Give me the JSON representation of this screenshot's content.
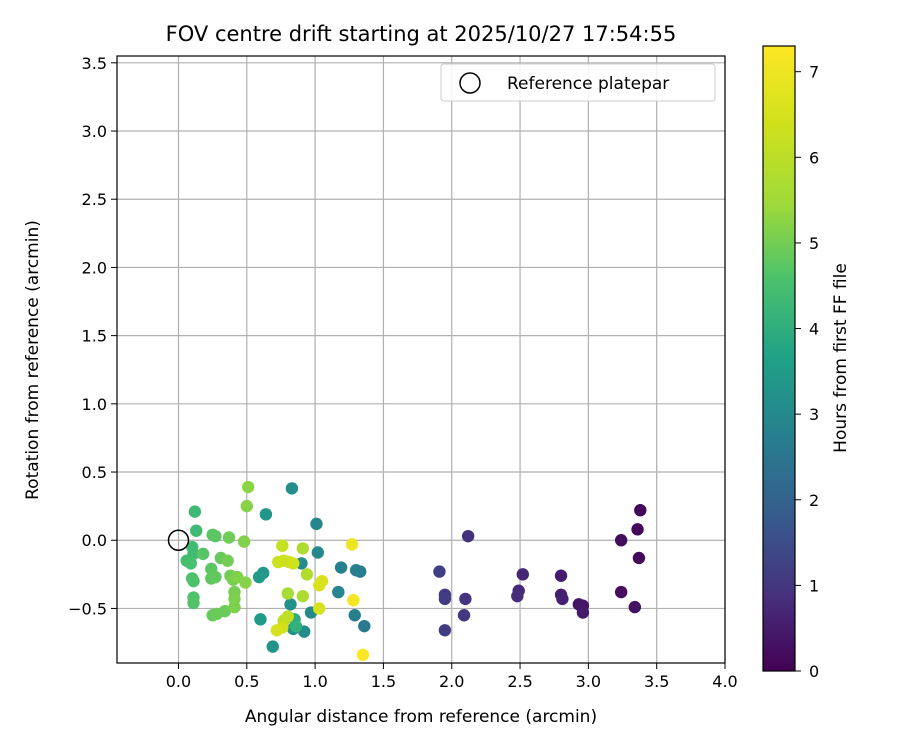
{
  "chart_data": {
    "type": "scatter",
    "title": "FOV centre drift starting at 2025/10/27 17:54:55",
    "xlabel": "Angular distance from reference (arcmin)",
    "ylabel": "Rotation from reference (arcmin)",
    "xlim": [
      -0.45,
      4.0
    ],
    "ylim": [
      -0.9,
      3.55
    ],
    "xticks": [
      0.0,
      0.5,
      1.0,
      1.5,
      2.0,
      2.5,
      3.0,
      3.5,
      4.0
    ],
    "xtick_labels": [
      "0.0",
      "0.5",
      "1.0",
      "1.5",
      "2.0",
      "2.5",
      "3.0",
      "3.5",
      "4.0"
    ],
    "yticks": [
      -0.5,
      0.0,
      0.5,
      1.0,
      1.5,
      2.0,
      2.5,
      3.0,
      3.5
    ],
    "ytick_labels": [
      "−0.5",
      "0.0",
      "0.5",
      "1.0",
      "1.5",
      "2.0",
      "2.5",
      "3.0",
      "3.5"
    ],
    "grid": true,
    "legend": {
      "placement": "top-right",
      "entries": [
        "Reference platepar"
      ]
    },
    "reference_point": {
      "x": 0.0,
      "y": 0.0,
      "name": "Reference platepar"
    },
    "colorbar": {
      "label": "Hours from first FF file",
      "range": [
        0,
        7.3
      ],
      "ticks": [
        0,
        1,
        2,
        3,
        4,
        5,
        6,
        7
      ],
      "tick_labels": [
        "0",
        "1",
        "2",
        "3",
        "4",
        "5",
        "6",
        "7"
      ],
      "colormap": "viridis"
    },
    "points": [
      {
        "x": 3.38,
        "y": 0.22,
        "c": 0.1
      },
      {
        "x": 3.36,
        "y": 0.08,
        "c": 0.12
      },
      {
        "x": 3.37,
        "y": -0.13,
        "c": 0.15
      },
      {
        "x": 3.24,
        "y": 0.0,
        "c": 0.2
      },
      {
        "x": 3.24,
        "y": -0.38,
        "c": 0.25
      },
      {
        "x": 3.34,
        "y": -0.49,
        "c": 0.3
      },
      {
        "x": 2.93,
        "y": -0.47,
        "c": 0.35
      },
      {
        "x": 2.96,
        "y": -0.48,
        "c": 0.4
      },
      {
        "x": 2.96,
        "y": -0.53,
        "c": 0.45
      },
      {
        "x": 2.8,
        "y": -0.26,
        "c": 0.5
      },
      {
        "x": 2.8,
        "y": -0.4,
        "c": 0.55
      },
      {
        "x": 2.81,
        "y": -0.43,
        "c": 0.6
      },
      {
        "x": 2.52,
        "y": -0.25,
        "c": 0.7
      },
      {
        "x": 2.49,
        "y": -0.37,
        "c": 0.75
      },
      {
        "x": 2.48,
        "y": -0.41,
        "c": 0.8
      },
      {
        "x": 2.12,
        "y": 0.03,
        "c": 0.9
      },
      {
        "x": 2.1,
        "y": -0.43,
        "c": 0.95
      },
      {
        "x": 2.09,
        "y": -0.55,
        "c": 1.0
      },
      {
        "x": 1.95,
        "y": -0.4,
        "c": 1.05
      },
      {
        "x": 1.95,
        "y": -0.43,
        "c": 1.1
      },
      {
        "x": 1.95,
        "y": -0.66,
        "c": 1.15
      },
      {
        "x": 1.91,
        "y": -0.23,
        "c": 1.2
      },
      {
        "x": 1.36,
        "y": -0.63,
        "c": 2.6
      },
      {
        "x": 1.3,
        "y": -0.22,
        "c": 2.7
      },
      {
        "x": 1.33,
        "y": -0.23,
        "c": 2.7
      },
      {
        "x": 1.29,
        "y": -0.55,
        "c": 2.75
      },
      {
        "x": 1.19,
        "y": -0.2,
        "c": 2.8
      },
      {
        "x": 1.17,
        "y": -0.38,
        "c": 2.9
      },
      {
        "x": 1.01,
        "y": 0.12,
        "c": 2.95
      },
      {
        "x": 1.02,
        "y": -0.09,
        "c": 3.0
      },
      {
        "x": 0.97,
        "y": -0.53,
        "c": 3.0
      },
      {
        "x": 0.92,
        "y": -0.67,
        "c": 3.05
      },
      {
        "x": 0.83,
        "y": 0.38,
        "c": 3.1
      },
      {
        "x": 0.9,
        "y": -0.17,
        "c": 3.1
      },
      {
        "x": 0.82,
        "y": -0.47,
        "c": 3.2
      },
      {
        "x": 0.84,
        "y": -0.65,
        "c": 3.25
      },
      {
        "x": 0.69,
        "y": -0.78,
        "c": 3.3
      },
      {
        "x": 0.64,
        "y": 0.19,
        "c": 3.35
      },
      {
        "x": 0.62,
        "y": -0.24,
        "c": 3.4
      },
      {
        "x": 0.59,
        "y": -0.27,
        "c": 3.45
      },
      {
        "x": 0.6,
        "y": -0.58,
        "c": 3.5
      },
      {
        "x": 0.85,
        "y": -0.58,
        "c": 4.0
      },
      {
        "x": 0.86,
        "y": -0.63,
        "c": 4.1
      },
      {
        "x": 0.12,
        "y": 0.21,
        "c": 4.3
      },
      {
        "x": 0.13,
        "y": 0.07,
        "c": 4.35
      },
      {
        "x": 0.1,
        "y": -0.05,
        "c": 4.4
      },
      {
        "x": 0.11,
        "y": -0.1,
        "c": 4.4
      },
      {
        "x": 0.06,
        "y": -0.15,
        "c": 4.45
      },
      {
        "x": 0.09,
        "y": -0.17,
        "c": 4.5
      },
      {
        "x": 0.1,
        "y": -0.28,
        "c": 4.55
      },
      {
        "x": 0.11,
        "y": -0.3,
        "c": 4.6
      },
      {
        "x": 0.11,
        "y": -0.42,
        "c": 4.6
      },
      {
        "x": 0.11,
        "y": -0.46,
        "c": 4.65
      },
      {
        "x": 0.18,
        "y": -0.1,
        "c": 4.7
      },
      {
        "x": 0.25,
        "y": 0.04,
        "c": 4.7
      },
      {
        "x": 0.27,
        "y": 0.03,
        "c": 4.75
      },
      {
        "x": 0.24,
        "y": -0.21,
        "c": 4.75
      },
      {
        "x": 0.24,
        "y": -0.28,
        "c": 4.8
      },
      {
        "x": 0.27,
        "y": -0.27,
        "c": 4.8
      },
      {
        "x": 0.31,
        "y": -0.13,
        "c": 4.85
      },
      {
        "x": 0.25,
        "y": -0.55,
        "c": 4.85
      },
      {
        "x": 0.28,
        "y": -0.54,
        "c": 4.9
      },
      {
        "x": 0.34,
        "y": -0.52,
        "c": 4.9
      },
      {
        "x": 0.37,
        "y": 0.02,
        "c": 4.95
      },
      {
        "x": 0.36,
        "y": -0.15,
        "c": 5.0
      },
      {
        "x": 0.38,
        "y": -0.26,
        "c": 5.0
      },
      {
        "x": 0.4,
        "y": -0.29,
        "c": 5.05
      },
      {
        "x": 0.41,
        "y": -0.38,
        "c": 5.05
      },
      {
        "x": 0.41,
        "y": -0.43,
        "c": 5.1
      },
      {
        "x": 0.41,
        "y": -0.49,
        "c": 5.1
      },
      {
        "x": 0.43,
        "y": -0.27,
        "c": 5.15
      },
      {
        "x": 0.48,
        "y": -0.01,
        "c": 5.15
      },
      {
        "x": 0.49,
        "y": -0.31,
        "c": 5.2
      },
      {
        "x": 0.5,
        "y": 0.25,
        "c": 5.2
      },
      {
        "x": 0.51,
        "y": 0.39,
        "c": 5.25
      },
      {
        "x": 0.8,
        "y": -0.39,
        "c": 5.6
      },
      {
        "x": 0.91,
        "y": -0.41,
        "c": 5.7
      },
      {
        "x": 0.91,
        "y": -0.06,
        "c": 5.75
      },
      {
        "x": 0.94,
        "y": -0.25,
        "c": 5.8
      },
      {
        "x": 0.77,
        "y": -0.59,
        "c": 6.0
      },
      {
        "x": 0.8,
        "y": -0.56,
        "c": 6.1
      },
      {
        "x": 0.76,
        "y": -0.04,
        "c": 6.2
      },
      {
        "x": 0.73,
        "y": -0.16,
        "c": 6.3
      },
      {
        "x": 0.77,
        "y": -0.15,
        "c": 6.35
      },
      {
        "x": 0.81,
        "y": -0.16,
        "c": 6.35
      },
      {
        "x": 0.84,
        "y": -0.17,
        "c": 6.4
      },
      {
        "x": 0.76,
        "y": -0.64,
        "c": 6.45
      },
      {
        "x": 0.72,
        "y": -0.66,
        "c": 6.5
      },
      {
        "x": 1.03,
        "y": -0.5,
        "c": 6.5
      },
      {
        "x": 1.03,
        "y": -0.33,
        "c": 6.55
      },
      {
        "x": 1.05,
        "y": -0.3,
        "c": 6.6
      },
      {
        "x": 1.27,
        "y": -0.03,
        "c": 7.0
      },
      {
        "x": 1.28,
        "y": -0.44,
        "c": 7.1
      },
      {
        "x": 1.35,
        "y": -0.84,
        "c": 7.25
      }
    ]
  }
}
